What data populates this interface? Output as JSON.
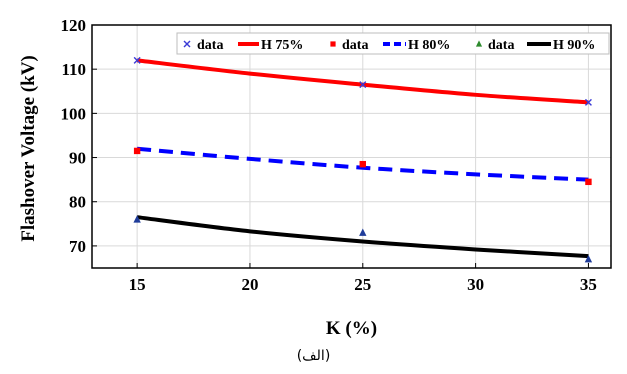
{
  "chart_data": {
    "type": "line",
    "xlabel": "K (%)",
    "ylabel": "Flashover Voltage (kV)",
    "xlim": [
      13,
      36
    ],
    "ylim": [
      65,
      120
    ],
    "xticks": [
      15,
      20,
      25,
      30,
      35
    ],
    "yticks": [
      70,
      80,
      90,
      100,
      110,
      120
    ],
    "grid": true,
    "legend_position": "top, horizontal",
    "series": [
      {
        "name": "data",
        "kind": "scatter",
        "marker": "x",
        "color": "#3b3bd6",
        "x": [
          15,
          25,
          35
        ],
        "y": [
          112,
          106.5,
          102.5
        ]
      },
      {
        "name": "H 75%",
        "kind": "line",
        "style": "solid",
        "color": "#ff0000",
        "x": [
          15,
          20,
          25,
          30,
          35
        ],
        "y": [
          112,
          109,
          106.5,
          104.2,
          102.5
        ]
      },
      {
        "name": "data",
        "kind": "scatter",
        "marker": "square",
        "color": "#ff0000",
        "x": [
          15,
          25,
          35
        ],
        "y": [
          91.5,
          88.5,
          84.5
        ]
      },
      {
        "name": "H 80%",
        "kind": "line",
        "style": "dashed",
        "color": "#0000ff",
        "x": [
          15,
          20,
          25,
          30,
          35
        ],
        "y": [
          92,
          89.7,
          87.7,
          86.2,
          85
        ]
      },
      {
        "name": "data",
        "kind": "scatter",
        "marker": "triangle",
        "color": "#1f3c9a",
        "x": [
          15,
          25,
          35
        ],
        "y": [
          76,
          73,
          67
        ]
      },
      {
        "name": "H 90%",
        "kind": "line",
        "style": "solid",
        "color": "#000000",
        "x": [
          15,
          20,
          25,
          30,
          35
        ],
        "y": [
          76.5,
          73.3,
          71,
          69.2,
          67.7
        ]
      }
    ],
    "legend_marker_colors": [
      "#3b3bd6",
      "#ff0000",
      "#ff0000",
      "#0000ff",
      "#2e8b2e",
      "#000000"
    ]
  },
  "caption": "(الف)"
}
